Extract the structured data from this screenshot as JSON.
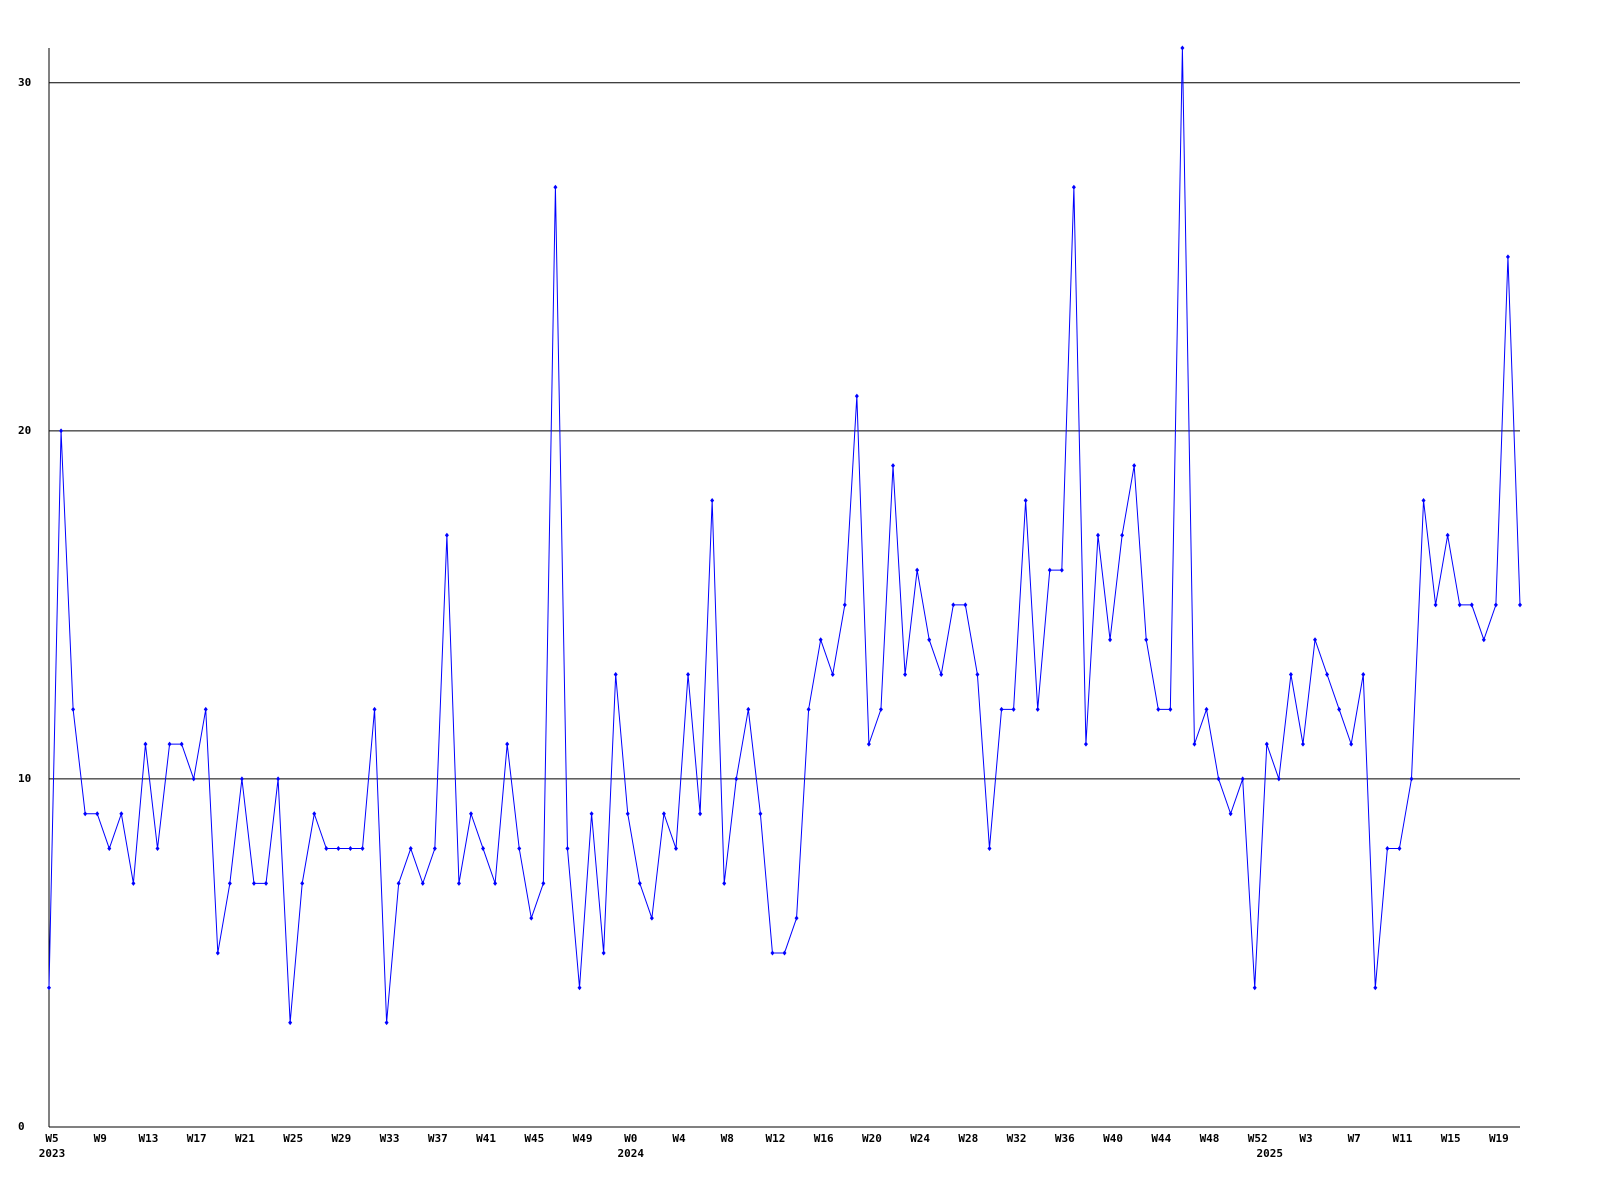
{
  "chart_data": {
    "type": "line",
    "categories": [
      "W5",
      null,
      null,
      null,
      "W9",
      null,
      null,
      null,
      "W13",
      null,
      null,
      null,
      "W17",
      null,
      null,
      null,
      "W21",
      null,
      null,
      null,
      "W25",
      null,
      null,
      null,
      "W29",
      null,
      null,
      null,
      "W33",
      null,
      null,
      null,
      "W37",
      null,
      null,
      null,
      "W41",
      null,
      null,
      null,
      "W45",
      null,
      null,
      null,
      "W49",
      null,
      null,
      null,
      "W0",
      null,
      null,
      null,
      "W4",
      null,
      null,
      null,
      "W8",
      null,
      null,
      null,
      "W12",
      null,
      null,
      null,
      "W16",
      null,
      null,
      null,
      "W20",
      null,
      null,
      null,
      "W24",
      null,
      null,
      null,
      "W28",
      null,
      null,
      null,
      "W32",
      null,
      null,
      null,
      "W36",
      null,
      null,
      null,
      "W40",
      null,
      null,
      null,
      "W44",
      null,
      null,
      null,
      "W48",
      null,
      null,
      null,
      "W52",
      null,
      null,
      null,
      "W3",
      null,
      null,
      null,
      "W7",
      null,
      null,
      null,
      "W11",
      null,
      null,
      null,
      "W15",
      null,
      null,
      null,
      "W19",
      null,
      null
    ],
    "category_years": [
      "2023",
      null,
      null,
      null,
      null,
      null,
      null,
      null,
      null,
      null,
      null,
      null,
      null,
      null,
      null,
      null,
      null,
      null,
      null,
      null,
      null,
      null,
      null,
      null,
      null,
      null,
      null,
      null,
      null,
      null,
      null,
      null,
      null,
      null,
      null,
      null,
      null,
      null,
      null,
      null,
      null,
      null,
      null,
      null,
      null,
      null,
      null,
      null,
      "2024",
      null,
      null,
      null,
      null,
      null,
      null,
      null,
      null,
      null,
      null,
      null,
      null,
      null,
      null,
      null,
      null,
      null,
      null,
      null,
      null,
      null,
      null,
      null,
      null,
      null,
      null,
      null,
      null,
      null,
      null,
      null,
      null,
      null,
      null,
      null,
      null,
      null,
      null,
      null,
      null,
      null,
      null,
      null,
      null,
      null,
      null,
      null,
      null,
      null,
      null,
      null,
      null,
      "2025",
      null,
      null,
      null,
      null,
      null,
      null,
      null,
      null,
      null,
      null,
      null,
      null,
      null,
      null,
      null,
      null,
      null,
      null,
      null,
      null,
      null
    ],
    "series": [
      {
        "color": "#0000ff",
        "values": [
          4,
          20,
          12,
          9,
          9,
          8,
          9,
          7,
          11,
          8,
          11,
          11,
          10,
          12,
          5,
          7,
          10,
          7,
          7,
          10,
          3,
          7,
          9,
          8,
          8,
          8,
          8,
          12,
          3,
          7,
          8,
          7,
          8,
          17,
          7,
          9,
          8,
          7,
          11,
          8,
          6,
          7,
          27,
          8,
          4,
          9,
          5,
          13,
          9,
          7,
          6,
          9,
          8,
          13,
          9,
          18,
          7,
          10,
          12,
          9,
          5,
          5,
          6,
          12,
          14,
          13,
          15,
          21,
          11,
          12,
          19,
          13,
          16,
          14,
          13,
          15,
          15,
          13,
          8,
          12,
          12,
          18,
          12,
          16,
          16,
          27,
          11,
          17,
          14,
          17,
          19,
          14,
          12,
          12,
          31,
          11,
          12,
          10,
          9,
          10,
          4,
          11,
          10,
          13,
          11,
          14,
          13,
          12,
          11,
          13,
          4,
          8,
          8,
          10,
          18,
          15,
          17,
          15,
          15,
          14,
          15,
          25,
          15
        ]
      }
    ],
    "ylim": [
      0,
      31
    ],
    "yticks": [
      0,
      10,
      20,
      30
    ],
    "grid": true
  }
}
